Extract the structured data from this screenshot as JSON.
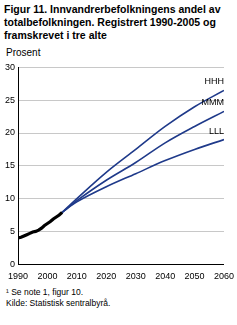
{
  "chart_data": {
    "type": "line",
    "title": "Figur 11. Innvandrerbefolkningens andel av totalbefolkningen. Registrert 1990-2005 og framskrevet i tre alte",
    "y_label": "Prosent",
    "notes": [
      "¹ Se note 1, figur 10.",
      "Kilde: Statistisk sentralbyrå."
    ],
    "x": [
      1990,
      1991,
      1992,
      1993,
      1994,
      1995,
      1996,
      1997,
      1998,
      1999,
      2000,
      2001,
      2002,
      2003,
      2004,
      2005,
      2010,
      2020,
      2030,
      2040,
      2050,
      2060
    ],
    "series": [
      {
        "color": "#000000",
        "values": [
          4.0,
          4.1,
          4.3,
          4.5,
          4.7,
          4.9,
          5.0,
          5.2,
          5.5,
          5.9,
          6.2,
          6.5,
          6.9,
          7.2,
          7.5,
          7.9,
          null,
          null,
          null,
          null,
          null,
          null
        ]
      },
      {
        "name": "HHH",
        "color": "#1f3a8a",
        "values": [
          null,
          null,
          null,
          null,
          null,
          null,
          null,
          null,
          null,
          null,
          null,
          null,
          null,
          null,
          null,
          7.9,
          10.0,
          14.0,
          17.5,
          21.0,
          24.0,
          26.5
        ]
      },
      {
        "name": "MMM",
        "color": "#1f3a8a",
        "values": [
          null,
          null,
          null,
          null,
          null,
          null,
          null,
          null,
          null,
          null,
          null,
          null,
          null,
          null,
          null,
          7.9,
          9.7,
          12.8,
          15.5,
          18.5,
          21.0,
          23.3
        ]
      },
      {
        "name": "LLL",
        "color": "#1f3a8a",
        "values": [
          null,
          null,
          null,
          null,
          null,
          null,
          null,
          null,
          null,
          null,
          null,
          null,
          null,
          null,
          null,
          7.9,
          9.5,
          11.8,
          13.8,
          15.8,
          17.5,
          19.0
        ]
      }
    ],
    "xlim": [
      1990,
      2060
    ],
    "xticks": [
      1990,
      2000,
      2010,
      2020,
      2030,
      2040,
      2050,
      2060
    ],
    "ylim": [
      0,
      30
    ],
    "yticks": [
      0,
      5,
      10,
      15,
      20,
      25,
      30
    ],
    "grid": true
  }
}
